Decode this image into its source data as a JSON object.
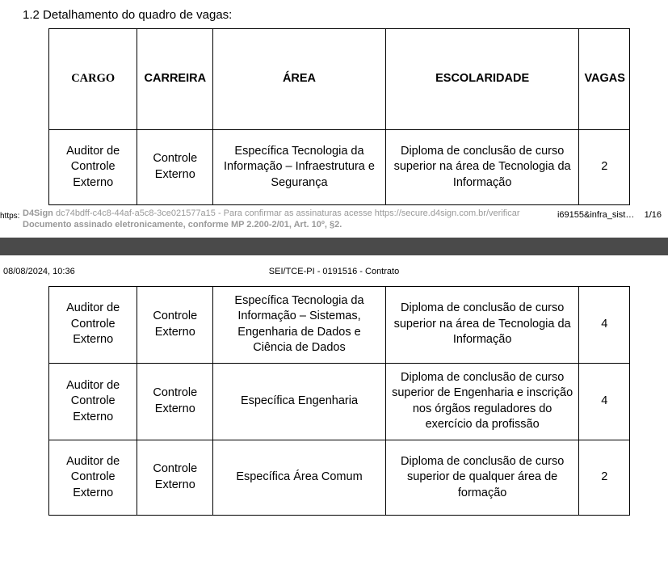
{
  "section_title": "1.2 Detalhamento do quadro de vagas:",
  "table": {
    "headers": {
      "cargo": "CARGO",
      "carreira": "CARREIRA",
      "area": "ÁREA",
      "escolaridade": "ESCOLARIDADE",
      "vagas": "VAGAS"
    },
    "rows": [
      {
        "cargo": "Auditor de Controle Externo",
        "carreira": "Controle Externo",
        "area": "Específica Tecnologia da Informação – Infraestrutura e Segurança",
        "escolaridade": "Diploma de conclusão de curso superior na área de Tecnologia da Informação",
        "vagas": "2"
      },
      {
        "cargo": "Auditor de Controle Externo",
        "carreira": "Controle Externo",
        "area": "Específica Tecnologia da Informação – Sistemas, Engenharia de Dados e Ciência de Dados",
        "escolaridade": "Diploma de conclusão de curso superior na área de Tecnologia da Informação",
        "vagas": "4"
      },
      {
        "cargo": "Auditor de Controle Externo",
        "carreira": "Controle Externo",
        "area": "Específica Engenharia",
        "escolaridade": "Diploma de conclusão de curso superior de Engenharia e inscrição nos órgãos reguladores do exercício da profissão",
        "vagas": "4"
      },
      {
        "cargo": "Auditor de Controle Externo",
        "carreira": "Controle Externo",
        "area": "Específica Área Comum",
        "escolaridade": "Diploma de conclusão de curso superior de qualquer área de formação",
        "vagas": "2"
      }
    ]
  },
  "d4sign": {
    "https_label": "https:",
    "prefix_bold": "D4Sign",
    "line1_rest": " dc74bdff-c4c8-44af-a5c8-3ce021577a15 - Para confirmar as assinaturas acesse https://secure.d4sign.com.br/verificar",
    "line2_bold": "Documento assinado eletronicamente, conforme MP 2.200-2/01, Art. 10º, §2.",
    "right_a": "i69155&infra_sist…",
    "right_b": "1/16"
  },
  "page_gap_text": " ",
  "page2": {
    "timestamp": "08/08/2024, 10:36",
    "docref": "SEI/TCE-PI - 0191516 - Contrato"
  }
}
